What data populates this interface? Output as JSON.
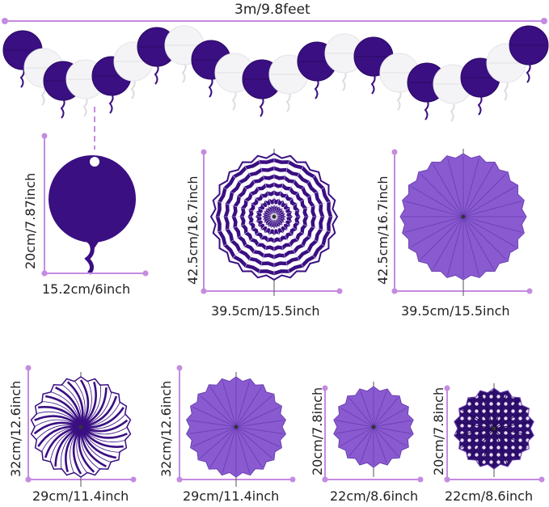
{
  "colors": {
    "purple": "#3a0f82",
    "light_purple": "#8a5bd0",
    "white_balloon": "#f4f4f6",
    "dimension_line": "#c58be0"
  },
  "garland": {
    "length_label": "3m/9.8feet"
  },
  "items": [
    {
      "id": "balloon",
      "width_label": "15.2cm/6inch",
      "height_label": "20cm/7.87inch"
    },
    {
      "id": "striped-fan-large",
      "width_label": "39.5cm/15.5inch",
      "height_label": "42.5cm/16.7inch"
    },
    {
      "id": "purple-fan-large",
      "width_label": "39.5cm/15.5inch",
      "height_label": "42.5cm/16.7inch"
    },
    {
      "id": "swirl-fan-medium",
      "width_label": "29cm/11.4inch",
      "height_label": "32cm/12.6inch"
    },
    {
      "id": "purple-fan-medium",
      "width_label": "29cm/11.4inch",
      "height_label": "32cm/12.6inch"
    },
    {
      "id": "purple-fan-small",
      "width_label": "22cm/8.6inch",
      "height_label": "20cm/7.8inch"
    },
    {
      "id": "polka-fan-small",
      "width_label": "22cm/8.6inch",
      "height_label": "20cm/7.8inch"
    }
  ]
}
